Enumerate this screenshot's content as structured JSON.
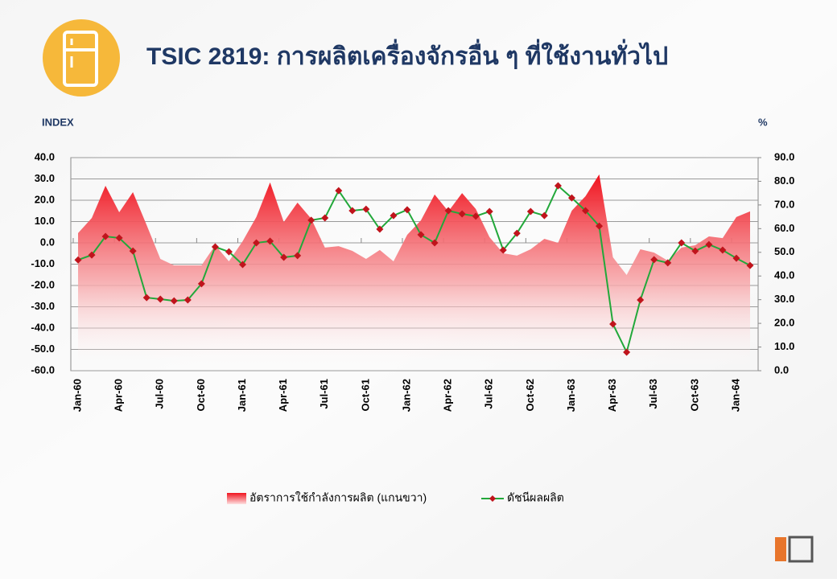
{
  "chart_data": {
    "type": "area-line",
    "title": "TSIC 2819: การผลิตเครื่องจักรอื่น ๆ ที่ใช้งานทั่วไป",
    "y_label": "INDEX",
    "y2_label": "%",
    "categories": [
      "Jan-60",
      null,
      null,
      "Apr-60",
      null,
      null,
      "Jul-60",
      null,
      null,
      "Oct-60",
      null,
      null,
      "Jan-61",
      null,
      null,
      "Apr-61",
      null,
      null,
      "Jul-61",
      null,
      null,
      "Oct-61",
      null,
      null,
      "Jan-62",
      null,
      null,
      "Apr-62",
      null,
      null,
      "Jul-62",
      null,
      null,
      "Oct-62",
      null,
      null,
      "Jan-63",
      null,
      null,
      "Apr-63",
      null,
      null,
      "Jul-63",
      null,
      null,
      "Oct-63",
      null,
      null,
      "Jan-64",
      null
    ],
    "series": [
      {
        "name": "อัตราการใช้กำลังการผลิต (แกนขวา)",
        "type": "area",
        "axis": "y2",
        "color": "#f0131e",
        "values": [
          58.1,
          64.5,
          78.1,
          66.9,
          75.4,
          61.5,
          47.2,
          44.5,
          44.5,
          44.5,
          53,
          46.2,
          54.7,
          64.9,
          79.5,
          62.8,
          71,
          64.2,
          52,
          52.6,
          50.6,
          47.2,
          51,
          46.2,
          57.4,
          63.5,
          74.4,
          67.3,
          75,
          68.3,
          56.4,
          49.6,
          48.6,
          51.3,
          55.7,
          54,
          67.6,
          73.7,
          82.9,
          47.9,
          40.4,
          51.3,
          49.9,
          46.5,
          52,
          53,
          56.7,
          56,
          64.9,
          67.3
        ]
      },
      {
        "name": "ดัชนีผลผลิต",
        "type": "line",
        "color": "#22a83a",
        "marker_color": "#c0141c",
        "values": [
          -8,
          -5.7,
          3,
          2.3,
          -3.8,
          -25.7,
          -26.4,
          -27.2,
          -26.8,
          -19.2,
          -1.9,
          -4.2,
          -10.2,
          0,
          0.8,
          -6.8,
          -6,
          10.6,
          11.7,
          24.5,
          15.1,
          15.8,
          6.4,
          12.8,
          15.5,
          3.8,
          0,
          15.1,
          13.6,
          12.5,
          14.7,
          -3.4,
          4.5,
          14.7,
          12.8,
          26.8,
          21.1,
          15.1,
          7.9,
          -38.1,
          -51.3,
          -26.8,
          -7.9,
          -9.4,
          0,
          -3.8,
          -0.8,
          -3.4,
          -7.2,
          -10.6
        ]
      }
    ],
    "ylim": [
      -60,
      40
    ],
    "yticks": [
      {
        "value": -60,
        "label": "-60.0"
      },
      {
        "value": -50,
        "label": "-50.0"
      },
      {
        "value": -40,
        "label": "-40.0"
      },
      {
        "value": -30,
        "label": "-30.0"
      },
      {
        "value": -20,
        "label": "-20.0"
      },
      {
        "value": -10,
        "label": "-10.0"
      },
      {
        "value": 0,
        "label": "0.0"
      },
      {
        "value": 10,
        "label": "10.0"
      },
      {
        "value": 20,
        "label": "20.0"
      },
      {
        "value": 30,
        "label": "30.0"
      },
      {
        "value": 40,
        "label": "40.0"
      }
    ],
    "y2lim": [
      0,
      90
    ],
    "y2ticks": [
      {
        "value": 0,
        "label": "0.0"
      },
      {
        "value": 10,
        "label": "10.0"
      },
      {
        "value": 20,
        "label": "20.0"
      },
      {
        "value": 30,
        "label": "30.0"
      },
      {
        "value": 40,
        "label": "40.0"
      },
      {
        "value": 50,
        "label": "50.0"
      },
      {
        "value": 60,
        "label": "60.0"
      },
      {
        "value": 70,
        "label": "70.0"
      },
      {
        "value": 80,
        "label": "80.0"
      },
      {
        "value": 90,
        "label": "90.0"
      }
    ],
    "grid": true,
    "legend": "bottom"
  }
}
